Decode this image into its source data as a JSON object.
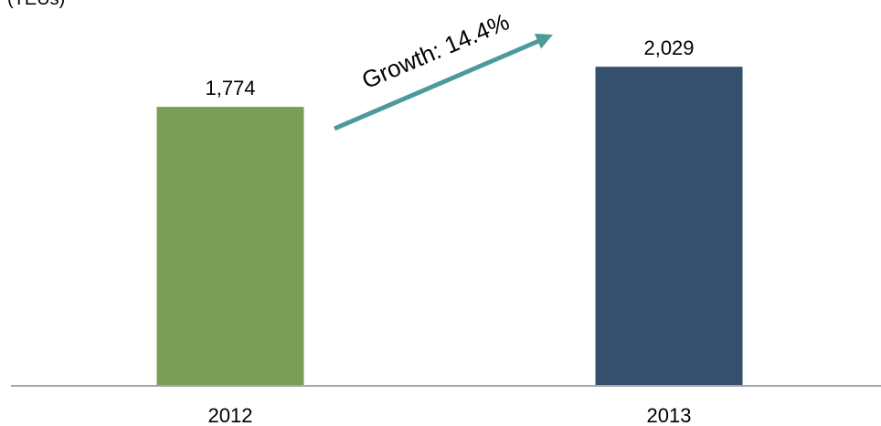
{
  "chart_data": {
    "type": "bar",
    "unit_label": "(TEUs)",
    "categories": [
      "2012",
      "2013"
    ],
    "values": [
      1774,
      2029
    ],
    "data_labels": [
      "1,774",
      "2,029"
    ],
    "bar_colors": [
      "#7a9e57",
      "#35506d"
    ],
    "axis_color": "#a6a6a6",
    "annotation": {
      "text": "Growth: 14.4%",
      "color": "#4c9a9a"
    },
    "ylim": [
      0,
      2320
    ]
  }
}
